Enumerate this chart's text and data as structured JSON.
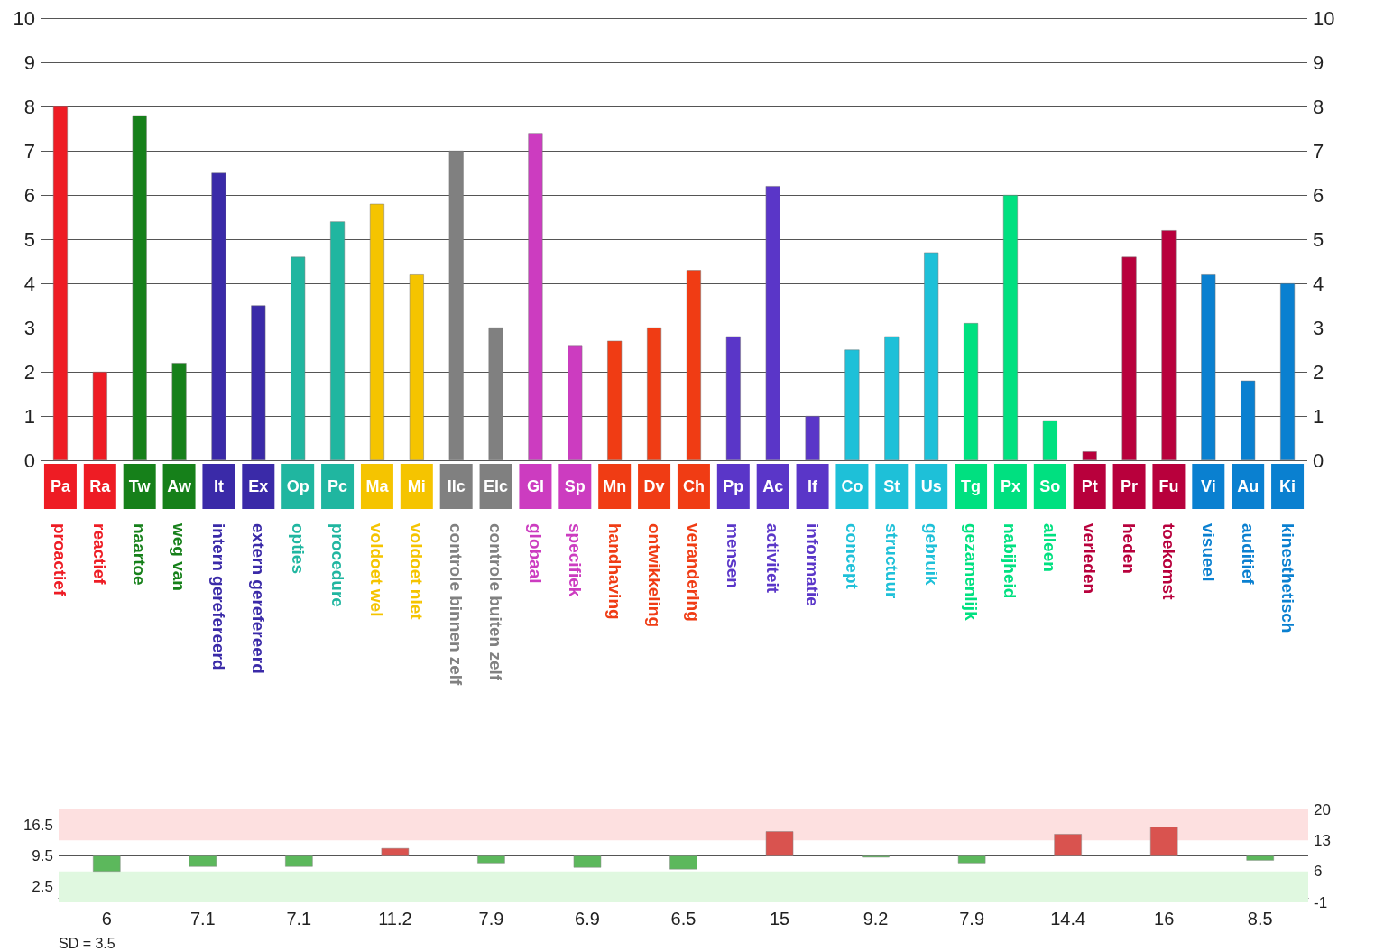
{
  "chart_data": [
    {
      "type": "bar",
      "categories": [
        "Pa",
        "Ra",
        "Tw",
        "Aw",
        "It",
        "Ex",
        "Op",
        "Pc",
        "Ma",
        "Mi",
        "Ilc",
        "Elc",
        "Gl",
        "Sp",
        "Mn",
        "Dv",
        "Ch",
        "Pp",
        "Ac",
        "If",
        "Co",
        "St",
        "Us",
        "Tg",
        "Px",
        "So",
        "Pt",
        "Pr",
        "Fu",
        "Vi",
        "Au",
        "Ki"
      ],
      "values": [
        8.0,
        2.0,
        7.8,
        2.2,
        6.5,
        3.5,
        4.6,
        5.4,
        5.8,
        4.2,
        7.0,
        3.0,
        7.4,
        2.6,
        2.7,
        3.0,
        4.3,
        2.8,
        6.2,
        1.0,
        2.5,
        2.8,
        4.7,
        3.1,
        6.0,
        0.9,
        0.2,
        4.6,
        5.2,
        4.2,
        1.8,
        4.0
      ],
      "colors": [
        "#ee1c24",
        "#ee1c24",
        "#16801a",
        "#16801a",
        "#3a2aa8",
        "#3a2aa8",
        "#20b6a0",
        "#20b6a0",
        "#f5c400",
        "#f5c400",
        "#808080",
        "#808080",
        "#cc3cc0",
        "#cc3cc0",
        "#f03c14",
        "#f03c14",
        "#f03c14",
        "#5a36c8",
        "#5a36c8",
        "#5a36c8",
        "#1ec0d8",
        "#1ec0d8",
        "#1ec0d8",
        "#00e080",
        "#00e080",
        "#00e080",
        "#b8003c",
        "#b8003c",
        "#b8003c",
        "#0a80d0",
        "#0a80d0",
        "#0a80d0"
      ],
      "ylim": [
        0,
        10
      ],
      "yticks": [
        0,
        1,
        2,
        3,
        4,
        5,
        6,
        7,
        8,
        9,
        10
      ],
      "y2lim": [
        0,
        10
      ],
      "y2ticks": [
        0,
        1,
        2,
        3,
        4,
        5,
        6,
        7,
        8,
        9,
        10
      ],
      "grid": "y",
      "annotations": [
        "proactief",
        "reactief",
        "naartoe",
        "weg van",
        "intern gerefereerd",
        "extern gerefereerd",
        "opties",
        "procedure",
        "voldoet wel",
        "voldoet niet",
        "controle binnen zelf",
        "controle buiten zelf",
        "globaal",
        "specifiek",
        "handhaving",
        "ontwikkeling",
        "verandering",
        "mensen",
        "activiteit",
        "informatie",
        "concept",
        "structuur",
        "gebruik",
        "gezamenlijk",
        "nabijheid",
        "alleen",
        "verleden",
        "heden",
        "toekomst",
        "visueel",
        "auditief",
        "kinesthetisch"
      ]
    },
    {
      "type": "bar",
      "categories": [
        "6",
        "7.1",
        "7.1",
        "11.2",
        "7.9",
        "6.9",
        "6.5",
        "15",
        "9.2",
        "7.9",
        "14.4",
        "16",
        "8.5"
      ],
      "values": [
        -3.5,
        -2.4,
        -2.4,
        1.7,
        -1.6,
        -2.6,
        -3,
        5.5,
        -0.3,
        -1.6,
        4.9,
        6.5,
        -1
      ],
      "base": [
        9.5,
        9.5,
        9.5,
        9.5,
        9.5,
        9.5,
        9.5,
        9.5,
        9.5,
        9.5,
        9.5,
        9.5,
        9.5
      ],
      "colors": [
        "#5cb85c",
        "#5cb85c",
        "#5cb85c",
        "#d9534f",
        "#5cb85c",
        "#5cb85c",
        "#5cb85c",
        "#d9534f",
        "#5cb85c",
        "#5cb85c",
        "#d9534f",
        "#d9534f",
        "#5cb85c"
      ],
      "ylim": [
        -1,
        20
      ],
      "yticks": [
        2.5,
        9.5,
        16.5
      ],
      "y2lim": [
        -1,
        20
      ],
      "y2ticks": [
        -1,
        6,
        13,
        20
      ],
      "grid": "y",
      "bands": [
        {
          "axis": "y",
          "from": 13,
          "to": 20,
          "color": "#fde0e0"
        },
        {
          "axis": "y",
          "from": -1,
          "to": 6,
          "color": "#e0f8e0"
        }
      ],
      "annotations": [
        "SD = 3.5"
      ]
    }
  ]
}
